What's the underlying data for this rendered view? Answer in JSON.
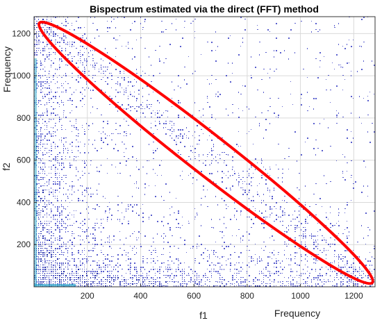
{
  "chart_data": {
    "type": "heatmap",
    "title": "Bispectrum estimated via the direct (FFT) method",
    "xlabel": "f1",
    "ylabel": "f2",
    "x_annotation": "Frequency",
    "y_annotation": "Frequency",
    "xlim": [
      0,
      1280
    ],
    "ylim": [
      0,
      1280
    ],
    "xticks": [
      200,
      400,
      600,
      800,
      1000,
      1200
    ],
    "yticks": [
      200,
      400,
      600,
      800,
      1000,
      1200
    ],
    "grid": true,
    "colors": {
      "background": "#ffffff",
      "density": "#3a3fc4",
      "density_strong": "#1f2aa8",
      "edge_highlight": "#2aa7c9",
      "ellipse": "#ff0000",
      "grid": "#d9d9d9"
    },
    "highlight_ellipse": {
      "color": "#ff0000",
      "from": {
        "f1": 20,
        "f2": 1250
      },
      "to": {
        "f1": 1270,
        "f2": 20
      },
      "half_width_freq": 75
    }
  }
}
